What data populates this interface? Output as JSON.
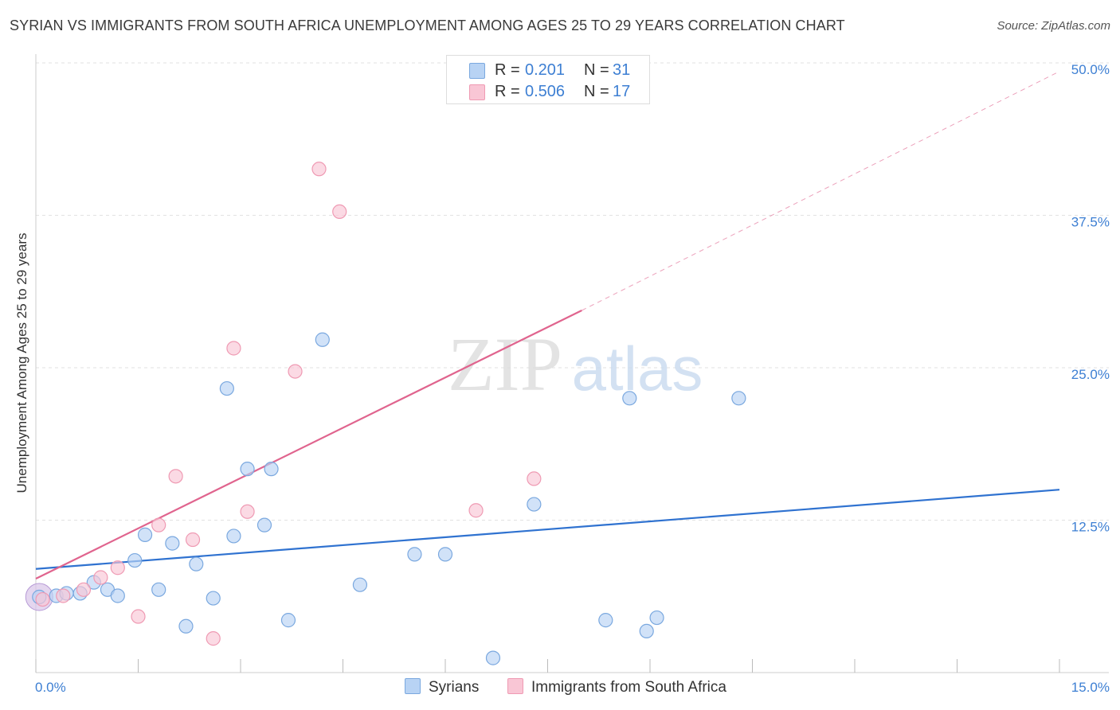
{
  "title": "SYRIAN VS IMMIGRANTS FROM SOUTH AFRICA UNEMPLOYMENT AMONG AGES 25 TO 29 YEARS CORRELATION CHART",
  "source": "Source: ZipAtlas.com",
  "watermark": {
    "zip": "ZIP",
    "atlas": "atlas"
  },
  "legend": {
    "r_label": "R =",
    "n_label": "N =",
    "rows": [
      {
        "name": "Syrians",
        "r": "0.201",
        "n": "31"
      },
      {
        "name": "Immigrants from South Africa",
        "r": "0.506",
        "n": "17"
      }
    ]
  },
  "colors": {
    "syrians_fill": "#b8d3f4",
    "syrians_stroke": "#7aa8df",
    "syrians_line": "#2f72d0",
    "sa_fill": "#f9c6d5",
    "sa_stroke": "#ef9ab3",
    "sa_line": "#e0648e",
    "axis_label": "#3d7fd3",
    "grid": "#e2e2e2"
  },
  "chart_data": {
    "type": "scatter",
    "title": "SYRIAN VS IMMIGRANTS FROM SOUTH AFRICA UNEMPLOYMENT AMONG AGES 25 TO 29 YEARS CORRELATION CHART",
    "xlabel": "",
    "ylabel": "Unemployment Among Ages 25 to 29 years",
    "xlim": [
      0,
      15
    ],
    "ylim": [
      0,
      50
    ],
    "x_tick_labels": [
      "0.0%",
      "15.0%"
    ],
    "y_ticks": [
      12.5,
      25,
      37.5,
      50
    ],
    "y_tick_labels": [
      "12.5%",
      "25.0%",
      "37.5%",
      "50.0%"
    ],
    "x_minor_ticks": [
      0,
      1.5,
      3,
      4.5,
      6,
      7.5,
      9,
      10.5,
      12,
      13.5,
      15
    ],
    "series": [
      {
        "name": "Syrians",
        "points": [
          [
            0.05,
            6.2
          ],
          [
            0.3,
            6.3
          ],
          [
            0.45,
            6.5
          ],
          [
            0.65,
            6.5
          ],
          [
            0.85,
            7.4
          ],
          [
            1.05,
            6.8
          ],
          [
            1.2,
            6.3
          ],
          [
            1.45,
            9.2
          ],
          [
            1.6,
            11.3
          ],
          [
            1.8,
            6.8
          ],
          [
            2.0,
            10.6
          ],
          [
            2.2,
            3.8
          ],
          [
            2.35,
            8.9
          ],
          [
            2.6,
            6.1
          ],
          [
            2.8,
            23.3
          ],
          [
            2.9,
            11.2
          ],
          [
            3.1,
            16.7
          ],
          [
            3.35,
            12.1
          ],
          [
            3.45,
            16.7
          ],
          [
            3.7,
            4.3
          ],
          [
            4.2,
            27.3
          ],
          [
            4.75,
            7.2
          ],
          [
            5.55,
            9.7
          ],
          [
            6.0,
            9.7
          ],
          [
            6.7,
            1.2
          ],
          [
            7.3,
            13.8
          ],
          [
            8.35,
            4.3
          ],
          [
            8.7,
            22.5
          ],
          [
            8.95,
            3.4
          ],
          [
            9.1,
            4.5
          ],
          [
            10.3,
            22.5
          ]
        ],
        "trend": {
          "x": [
            0,
            15
          ],
          "y": [
            8.5,
            15.0
          ]
        }
      },
      {
        "name": "Immigrants from South Africa",
        "points": [
          [
            0.1,
            6.0
          ],
          [
            0.4,
            6.3
          ],
          [
            0.7,
            6.8
          ],
          [
            0.95,
            7.8
          ],
          [
            1.2,
            8.6
          ],
          [
            1.5,
            4.6
          ],
          [
            1.8,
            12.1
          ],
          [
            2.05,
            16.1
          ],
          [
            2.3,
            10.9
          ],
          [
            2.6,
            2.8
          ],
          [
            2.9,
            26.6
          ],
          [
            3.1,
            13.2
          ],
          [
            3.8,
            24.7
          ],
          [
            4.15,
            41.3
          ],
          [
            4.45,
            37.8
          ],
          [
            6.45,
            13.3
          ],
          [
            7.3,
            15.9
          ]
        ],
        "trend": {
          "x": [
            0,
            8.0
          ],
          "y": [
            7.7,
            29.7
          ]
        },
        "trend_extension": {
          "x": [
            8.0,
            15
          ],
          "y": [
            29.7,
            49.3
          ]
        }
      }
    ]
  }
}
